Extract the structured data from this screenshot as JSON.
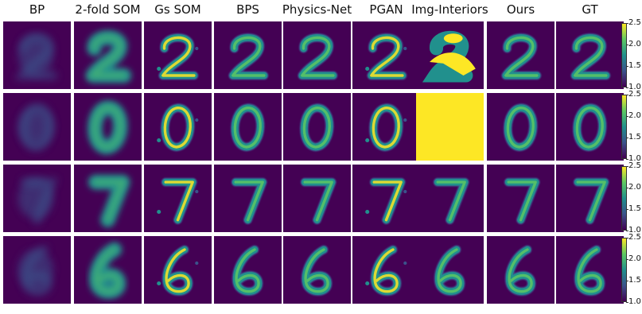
{
  "columns": [
    "BP",
    "2-fold SOM",
    "Gs SOM",
    "BPS",
    "Physics-Net",
    "PGAN",
    "Img-Interiors",
    "Ours",
    "GT"
  ],
  "rows": [
    {
      "digit": "2",
      "tick_labels": [
        "2.5",
        "2.0",
        "1.5",
        "1.0"
      ]
    },
    {
      "digit": "0",
      "tick_labels": [
        "2.5",
        "2.0",
        "1.5",
        "1.0"
      ]
    },
    {
      "digit": "7",
      "tick_labels": [
        "2.5",
        "2.0",
        "1.5",
        "1.0"
      ]
    },
    {
      "digit": "6",
      "tick_labels": [
        "2.5",
        "2.0",
        "1.5",
        "1.0"
      ]
    }
  ],
  "colorbar": {
    "colormap": "viridis",
    "min": 1.0,
    "max": 2.5
  },
  "colors": {
    "background": "#440154",
    "low": "#3b528b",
    "mid": "#21908d",
    "high": "#5dc863",
    "peak": "#fde725"
  }
}
